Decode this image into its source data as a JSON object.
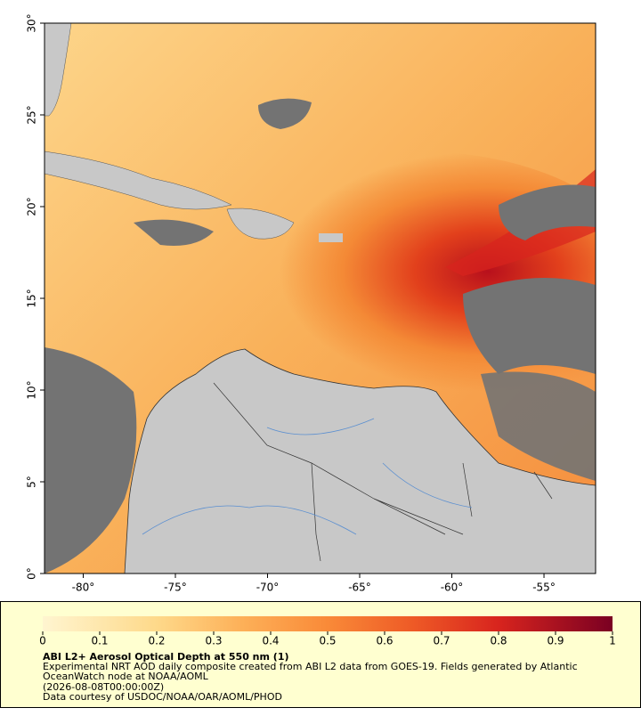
{
  "map": {
    "xlim": [
      -82.1,
      -52.2
    ],
    "ylim": [
      0,
      30
    ],
    "xticks": [
      {
        "value": -80,
        "label": "-80°"
      },
      {
        "value": -75,
        "label": "-75°"
      },
      {
        "value": -70,
        "label": "-70°"
      },
      {
        "value": -65,
        "label": "-65°"
      },
      {
        "value": -60,
        "label": "-60°"
      },
      {
        "value": -55,
        "label": "-55°"
      }
    ],
    "yticks": [
      {
        "value": 0,
        "label": "0°"
      },
      {
        "value": 5,
        "label": "5°"
      },
      {
        "value": 10,
        "label": "10°"
      },
      {
        "value": 15,
        "label": "15°"
      },
      {
        "value": 20,
        "label": "20°"
      },
      {
        "value": 25,
        "label": "25°"
      },
      {
        "value": 30,
        "label": "30°"
      }
    ]
  },
  "colorbar": {
    "lim": [
      0,
      1
    ],
    "ticks": [
      0,
      0.1,
      0.2,
      0.3,
      0.4,
      0.5,
      0.6,
      0.7,
      0.8,
      0.9,
      1
    ]
  },
  "caption": {
    "title": "ABI L2+ Aerosol Optical Depth at 550 nm (1)",
    "lines": [
      "Experimental NRT AOD daily composite created from ABI L2 data from GOES-19. Fields generated by Atlantic",
      "OceanWatch node at NOAA/AOML",
      "(2026-08-08T00:00:00Z)",
      "Data courtesy of USDOC/NOAA/OAR/AOML/PHOD"
    ]
  }
}
